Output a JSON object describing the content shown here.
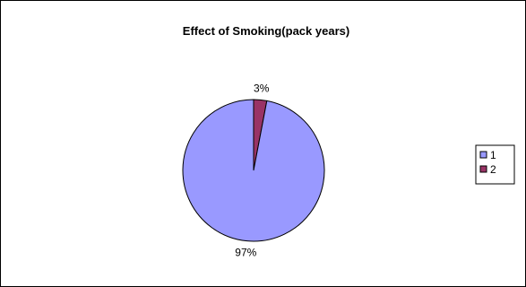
{
  "chart_data": {
    "type": "pie",
    "title": "Effect of Smoking(pack years)",
    "categories": [
      "1",
      "2"
    ],
    "values": [
      97,
      3
    ],
    "data_labels": [
      "97%",
      "3%"
    ],
    "colors": [
      "#9999FF",
      "#993366"
    ],
    "legend_placement": "right",
    "grid": false
  }
}
